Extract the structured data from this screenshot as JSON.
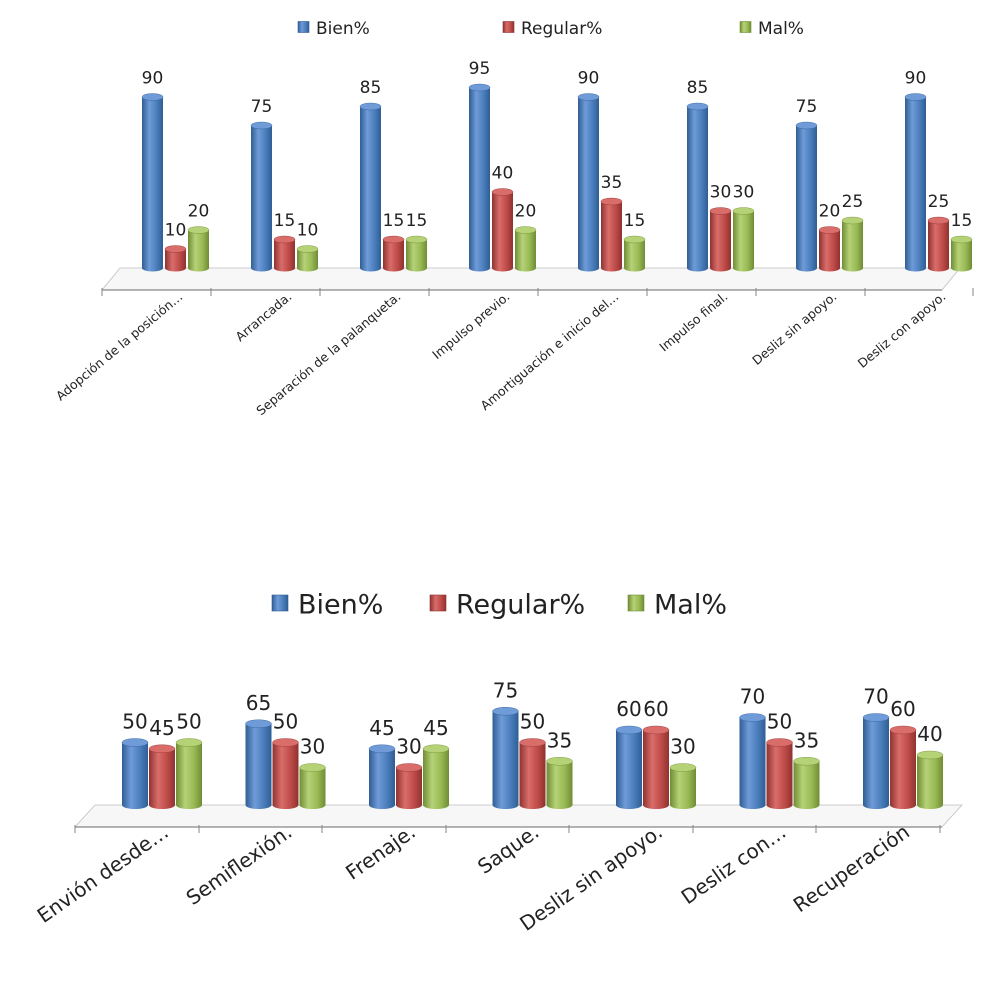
{
  "chart_data": [
    {
      "type": "bar",
      "categories": [
        "Adopción de la posición…",
        "Arrancada.",
        "Separación de la palanqueta.",
        "Impulso previo.",
        "Amortiguación e inicio del…",
        "Impulso final.",
        "Desliz sin apoyo.",
        "Desliz con apoyo."
      ],
      "series": [
        {
          "name": "Bien%",
          "values": [
            90,
            75,
            85,
            95,
            90,
            85,
            75,
            90
          ]
        },
        {
          "name": "Regular%",
          "values": [
            10,
            15,
            15,
            40,
            35,
            30,
            20,
            25
          ]
        },
        {
          "name": "Mal%",
          "values": [
            20,
            10,
            15,
            20,
            15,
            30,
            25,
            15
          ]
        }
      ],
      "ylim": [
        0,
        100
      ],
      "legend": "top",
      "grid": false,
      "data_labels": true
    },
    {
      "type": "bar",
      "categories": [
        "Envión desde…",
        "Semiflexión.",
        "Frenaje.",
        "Saque.",
        "Desliz sin apoyo.",
        "Desliz con…",
        "Recuperación"
      ],
      "series": [
        {
          "name": "Bien%",
          "values": [
            50,
            65,
            45,
            75,
            60,
            70,
            70
          ]
        },
        {
          "name": "Regular%",
          "values": [
            45,
            50,
            30,
            50,
            60,
            50,
            60
          ]
        },
        {
          "name": "Mal%",
          "values": [
            50,
            30,
            45,
            35,
            30,
            35,
            40
          ]
        }
      ],
      "ylim": [
        0,
        100
      ],
      "legend": "top",
      "grid": false,
      "data_labels": true
    }
  ],
  "colors": {
    "series": [
      "#4a7ebb",
      "#be4b48",
      "#98b954"
    ],
    "series_light": [
      "#6f9bd8",
      "#d96d6a",
      "#b6d277"
    ],
    "series_dark": [
      "#2f5d94",
      "#8f3230",
      "#6f8c34"
    ],
    "axis": "#868686"
  }
}
